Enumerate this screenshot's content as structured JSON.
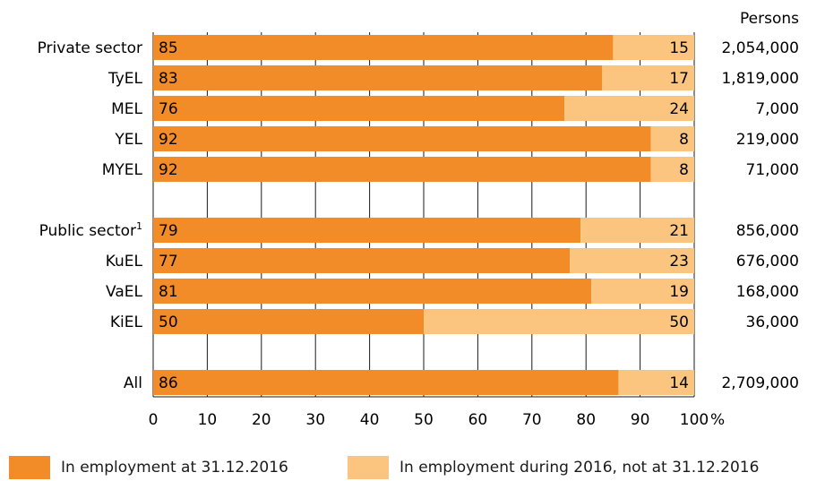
{
  "chart_data": {
    "type": "bar",
    "orientation": "horizontal",
    "stacked": true,
    "percent_axis_label": "%",
    "persons_header": "Persons",
    "xlim": [
      0,
      100
    ],
    "x_ticks": [
      "0",
      "10",
      "20",
      "30",
      "40",
      "50",
      "60",
      "70",
      "80",
      "90",
      "100"
    ],
    "grid": true,
    "legend_position": "bottom",
    "categories": [
      "Private sector",
      "TyEL",
      "MEL",
      "YEL",
      "MYEL",
      "Public sector",
      "KuEL",
      "VaEL",
      "KiEL",
      "All"
    ],
    "category_superscripts": [
      "",
      "",
      "",
      "",
      "",
      "1",
      "",
      "",
      "",
      ""
    ],
    "series": [
      {
        "name": "In employment at 31.12.2016",
        "color": "#f28c28",
        "values": [
          85,
          83,
          76,
          92,
          92,
          79,
          77,
          81,
          50,
          86
        ]
      },
      {
        "name": "In employment during 2016, not at 31.12.2016",
        "color": "#fcc57f",
        "values": [
          15,
          17,
          24,
          8,
          8,
          21,
          23,
          19,
          50,
          14
        ]
      }
    ],
    "persons": [
      "2,054,000",
      "1,819,000",
      "7,000",
      "219,000",
      "71,000",
      "856,000",
      "676,000",
      "168,000",
      "36,000",
      "2,709,000"
    ]
  }
}
